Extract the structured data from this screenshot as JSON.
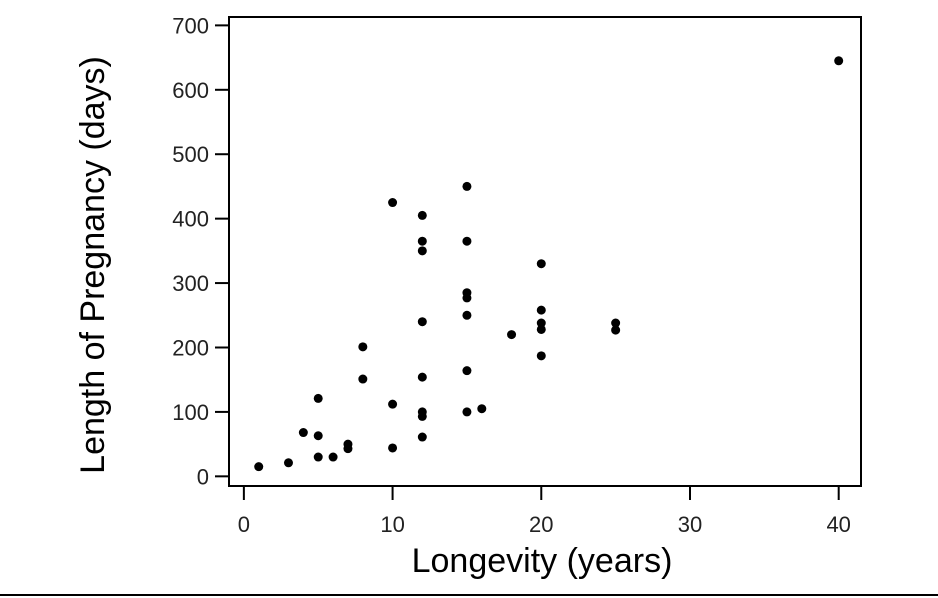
{
  "chart_data": {
    "type": "scatter",
    "title": "",
    "xlabel": "Longevity (years)",
    "ylabel": "Length of Pregnancy (days)",
    "xlim": [
      -1,
      41.5
    ],
    "ylim": [
      -15,
      713
    ],
    "xticks": [
      0,
      10,
      20,
      30,
      40
    ],
    "yticks": [
      0,
      100,
      200,
      300,
      400,
      500,
      600,
      700
    ],
    "grid": false,
    "marker_color": "#000000",
    "points": [
      {
        "x": 1,
        "y": 15
      },
      {
        "x": 3,
        "y": 21
      },
      {
        "x": 4,
        "y": 68
      },
      {
        "x": 5,
        "y": 121
      },
      {
        "x": 5,
        "y": 63
      },
      {
        "x": 5,
        "y": 30
      },
      {
        "x": 6,
        "y": 30
      },
      {
        "x": 7,
        "y": 50
      },
      {
        "x": 7,
        "y": 43
      },
      {
        "x": 8,
        "y": 201
      },
      {
        "x": 8,
        "y": 151
      },
      {
        "x": 10,
        "y": 425
      },
      {
        "x": 10,
        "y": 112
      },
      {
        "x": 10,
        "y": 44
      },
      {
        "x": 12,
        "y": 405
      },
      {
        "x": 12,
        "y": 365
      },
      {
        "x": 12,
        "y": 350
      },
      {
        "x": 12,
        "y": 240
      },
      {
        "x": 12,
        "y": 154
      },
      {
        "x": 12,
        "y": 100
      },
      {
        "x": 12,
        "y": 93
      },
      {
        "x": 12,
        "y": 61
      },
      {
        "x": 15,
        "y": 450
      },
      {
        "x": 15,
        "y": 365
      },
      {
        "x": 15,
        "y": 285
      },
      {
        "x": 15,
        "y": 277
      },
      {
        "x": 15,
        "y": 250
      },
      {
        "x": 15,
        "y": 164
      },
      {
        "x": 15,
        "y": 100
      },
      {
        "x": 16,
        "y": 105
      },
      {
        "x": 18,
        "y": 220
      },
      {
        "x": 20,
        "y": 330
      },
      {
        "x": 20,
        "y": 258
      },
      {
        "x": 20,
        "y": 238
      },
      {
        "x": 20,
        "y": 228
      },
      {
        "x": 20,
        "y": 187
      },
      {
        "x": 25,
        "y": 238
      },
      {
        "x": 25,
        "y": 227
      },
      {
        "x": 40,
        "y": 645
      }
    ]
  }
}
